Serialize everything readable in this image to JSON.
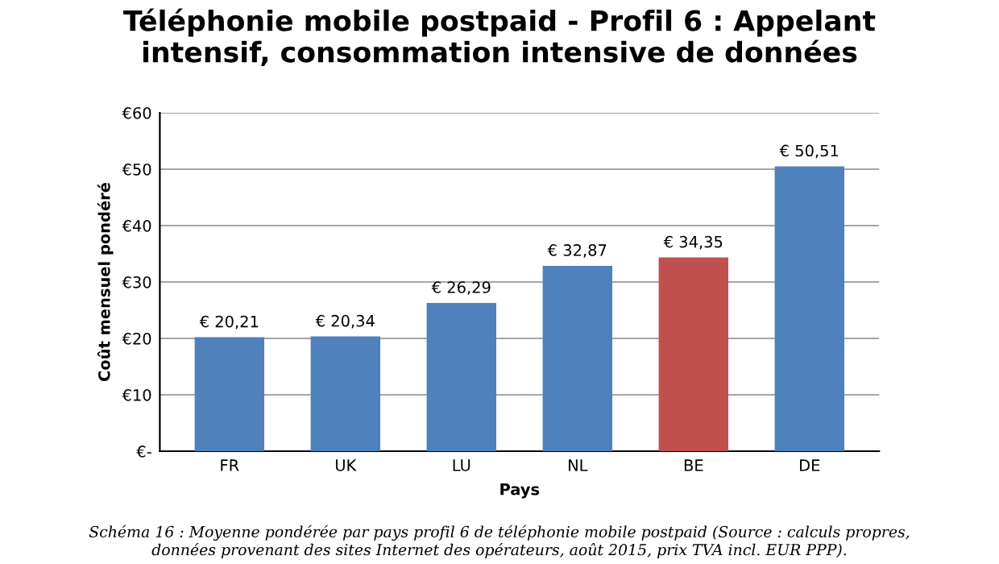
{
  "chart_data": {
    "type": "bar",
    "title": "Téléphonie mobile postpaid - Profil 6 : Appelant\nintensif, consommation intensive de données",
    "xlabel": "Pays",
    "ylabel": "Coût mensuel pondéré",
    "categories": [
      "FR",
      "UK",
      "LU",
      "NL",
      "BE",
      "DE"
    ],
    "values": [
      20.21,
      20.34,
      26.29,
      32.87,
      34.35,
      50.51
    ],
    "colors": [
      "#4f81bd",
      "#4f81bd",
      "#4f81bd",
      "#4f81bd",
      "#c0504d",
      "#4f81bd"
    ],
    "value_labels": [
      "€ 20,21",
      "€ 20,34",
      "€ 26,29",
      "€ 32,87",
      "€ 34,35",
      "€ 50,51"
    ],
    "ylim": [
      0,
      60
    ],
    "yticks": [
      {
        "value": 0,
        "label": "€-"
      },
      {
        "value": 10,
        "label": "€10"
      },
      {
        "value": 20,
        "label": "€20"
      },
      {
        "value": 30,
        "label": "€30"
      },
      {
        "value": 40,
        "label": "€40"
      },
      {
        "value": 50,
        "label": "€50"
      },
      {
        "value": 60,
        "label": "€60"
      }
    ],
    "grid": "y",
    "legend": false,
    "annotations": [
      "Schéma 16 : Moyenne pondérée par pays profil 6 de téléphonie mobile postpaid (Source : calculs propres,\ndonnées provenant des sites Internet des opérateurs, août 2015, prix TVA incl. EUR PPP)."
    ]
  }
}
